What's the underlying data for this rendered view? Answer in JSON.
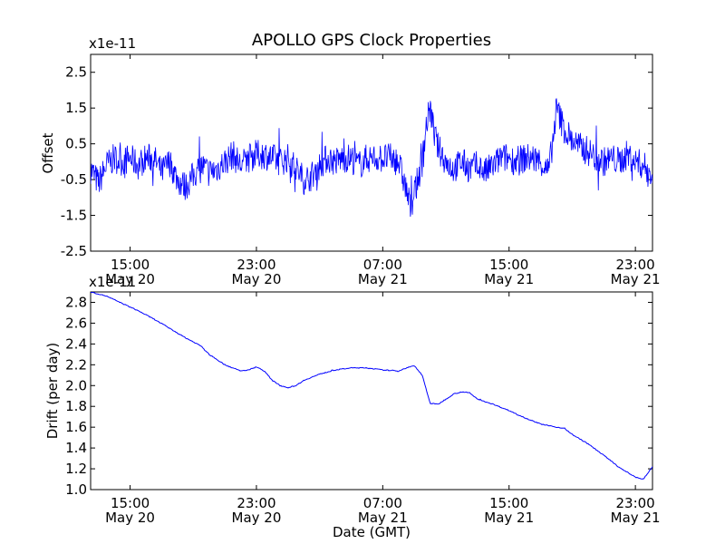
{
  "figure": {
    "title": "APOLLO GPS Clock Properties",
    "line_color": "#0000ff"
  },
  "chart_data": [
    {
      "type": "line",
      "name": "offset-chart",
      "ylabel": "Offset",
      "xlabel": "",
      "multiplier": "x1e-11",
      "x_range": [
        "2013-05-20T12:30",
        "2013-05-22T00:05"
      ],
      "ylim": [
        -2.5,
        3.0
      ],
      "yticks": [
        -2.5,
        -1.5,
        -0.5,
        0.5,
        1.5,
        2.5
      ],
      "ytick_labels": [
        "-2.5",
        "-1.5",
        "-0.5",
        "0.5",
        "1.5",
        "2.5"
      ],
      "xticks": [
        "2013-05-20T15:00",
        "2013-05-20T23:00",
        "2013-05-21T07:00",
        "2013-05-21T15:00",
        "2013-05-21T23:00"
      ],
      "xtick_labels": [
        [
          "15:00",
          "May 20"
        ],
        [
          "23:00",
          "May 20"
        ],
        [
          "07:00",
          "May 21"
        ],
        [
          "15:00",
          "May 21"
        ],
        [
          "23:00",
          "May 21"
        ]
      ],
      "series": [
        {
          "noise": 0.42,
          "points": [
            [
              "2013-05-20T12:30",
              -0.2
            ],
            [
              "2013-05-20T13:00",
              -0.6
            ],
            [
              "2013-05-20T13:30",
              -0.1
            ],
            [
              "2013-05-20T14:00",
              0.1
            ],
            [
              "2013-05-20T14:30",
              0.0
            ],
            [
              "2013-05-20T15:00",
              0.1
            ],
            [
              "2013-05-20T15:30",
              -0.1
            ],
            [
              "2013-05-20T16:00",
              0.1
            ],
            [
              "2013-05-20T16:30",
              0.1
            ],
            [
              "2013-05-20T17:00",
              -0.3
            ],
            [
              "2013-05-20T17:30",
              0.0
            ],
            [
              "2013-05-20T18:00",
              -0.5
            ],
            [
              "2013-05-20T18:30",
              -0.7
            ],
            [
              "2013-05-20T19:00",
              -0.4
            ],
            [
              "2013-05-20T19:30",
              -0.1
            ],
            [
              "2013-05-20T20:00",
              -0.3
            ],
            [
              "2013-05-20T20:30",
              -0.2
            ],
            [
              "2013-05-20T21:00",
              0.0
            ],
            [
              "2013-05-20T21:30",
              0.2
            ],
            [
              "2013-05-20T22:00",
              -0.1
            ],
            [
              "2013-05-20T22:30",
              0.1
            ],
            [
              "2013-05-20T23:00",
              0.2
            ],
            [
              "2013-05-20T23:30",
              0.2
            ],
            [
              "2013-05-21T00:00",
              0.1
            ],
            [
              "2013-05-21T00:30",
              0.0
            ],
            [
              "2013-05-21T01:00",
              0.1
            ],
            [
              "2013-05-21T01:30",
              -0.2
            ],
            [
              "2013-05-21T02:00",
              -0.5
            ],
            [
              "2013-05-21T02:30",
              -0.4
            ],
            [
              "2013-05-21T03:00",
              -0.1
            ],
            [
              "2013-05-21T03:30",
              0.1
            ],
            [
              "2013-05-21T04:00",
              0.0
            ],
            [
              "2013-05-21T04:30",
              0.1
            ],
            [
              "2013-05-21T05:00",
              0.1
            ],
            [
              "2013-05-21T05:30",
              -0.1
            ],
            [
              "2013-05-21T06:00",
              0.1
            ],
            [
              "2013-05-21T06:30",
              0.1
            ],
            [
              "2013-05-21T07:00",
              0.1
            ],
            [
              "2013-05-21T07:30",
              0.1
            ],
            [
              "2013-05-21T08:00",
              0.0
            ],
            [
              "2013-05-21T08:30",
              -0.8
            ],
            [
              "2013-05-21T08:45",
              -1.3
            ],
            [
              "2013-05-21T09:00",
              -0.9
            ],
            [
              "2013-05-21T09:30",
              0.0
            ],
            [
              "2013-05-21T09:45",
              1.0
            ],
            [
              "2013-05-21T10:00",
              1.5
            ],
            [
              "2013-05-21T10:15",
              0.8
            ],
            [
              "2013-05-21T10:30",
              0.4
            ],
            [
              "2013-05-21T11:00",
              0.0
            ],
            [
              "2013-05-21T11:30",
              -0.2
            ],
            [
              "2013-05-21T12:00",
              0.0
            ],
            [
              "2013-05-21T12:30",
              -0.2
            ],
            [
              "2013-05-21T13:00",
              -0.1
            ],
            [
              "2013-05-21T13:30",
              -0.3
            ],
            [
              "2013-05-21T14:00",
              -0.1
            ],
            [
              "2013-05-21T14:30",
              0.1
            ],
            [
              "2013-05-21T15:00",
              0.1
            ],
            [
              "2013-05-21T15:30",
              0.0
            ],
            [
              "2013-05-21T16:00",
              0.1
            ],
            [
              "2013-05-21T16:30",
              0.1
            ],
            [
              "2013-05-21T17:00",
              0.0
            ],
            [
              "2013-05-21T17:30",
              -0.3
            ],
            [
              "2013-05-21T17:45",
              0.5
            ],
            [
              "2013-05-21T18:00",
              1.5
            ],
            [
              "2013-05-21T18:15",
              1.2
            ],
            [
              "2013-05-21T18:30",
              0.9
            ],
            [
              "2013-05-21T19:00",
              0.6
            ],
            [
              "2013-05-21T19:30",
              0.4
            ],
            [
              "2013-05-21T20:00",
              0.3
            ],
            [
              "2013-05-21T20:30",
              0.1
            ],
            [
              "2013-05-21T21:00",
              0.0
            ],
            [
              "2013-05-21T21:30",
              0.1
            ],
            [
              "2013-05-21T22:00",
              0.0
            ],
            [
              "2013-05-21T22:30",
              0.2
            ],
            [
              "2013-05-21T23:00",
              0.0
            ],
            [
              "2013-05-21T23:30",
              -0.1
            ],
            [
              "2013-05-22T00:05",
              -0.4
            ]
          ]
        }
      ]
    },
    {
      "type": "line",
      "name": "drift-chart",
      "ylabel": "Drift (per day)",
      "xlabel": "Date (GMT)",
      "multiplier": "x1e-11",
      "x_range": [
        "2013-05-20T12:30",
        "2013-05-22T00:05"
      ],
      "ylim": [
        1.0,
        2.9
      ],
      "yticks": [
        1.0,
        1.2,
        1.4,
        1.6,
        1.8,
        2.0,
        2.2,
        2.4,
        2.6,
        2.8
      ],
      "ytick_labels": [
        "1.0",
        "1.2",
        "1.4",
        "1.6",
        "1.8",
        "2.0",
        "2.2",
        "2.4",
        "2.6",
        "2.8"
      ],
      "xticks": [
        "2013-05-20T15:00",
        "2013-05-20T23:00",
        "2013-05-21T07:00",
        "2013-05-21T15:00",
        "2013-05-21T23:00"
      ],
      "xtick_labels": [
        [
          "15:00",
          "May 20"
        ],
        [
          "23:00",
          "May 20"
        ],
        [
          "07:00",
          "May 21"
        ],
        [
          "15:00",
          "May 21"
        ],
        [
          "23:00",
          "May 21"
        ]
      ],
      "series": [
        {
          "noise": 0.004,
          "points": [
            [
              "2013-05-20T12:30",
              2.9
            ],
            [
              "2013-05-20T13:30",
              2.86
            ],
            [
              "2013-05-20T14:30",
              2.79
            ],
            [
              "2013-05-20T15:30",
              2.72
            ],
            [
              "2013-05-20T16:30",
              2.64
            ],
            [
              "2013-05-20T17:30",
              2.55
            ],
            [
              "2013-05-20T18:30",
              2.46
            ],
            [
              "2013-05-20T19:30",
              2.38
            ],
            [
              "2013-05-20T20:00",
              2.3
            ],
            [
              "2013-05-20T20:30",
              2.25
            ],
            [
              "2013-05-20T21:00",
              2.2
            ],
            [
              "2013-05-20T22:00",
              2.14
            ],
            [
              "2013-05-20T22:30",
              2.15
            ],
            [
              "2013-05-20T23:00",
              2.18
            ],
            [
              "2013-05-20T23:30",
              2.14
            ],
            [
              "2013-05-21T00:00",
              2.05
            ],
            [
              "2013-05-21T00:30",
              2.0
            ],
            [
              "2013-05-21T01:00",
              1.98
            ],
            [
              "2013-05-21T01:30",
              2.0
            ],
            [
              "2013-05-21T02:00",
              2.05
            ],
            [
              "2013-05-21T03:00",
              2.11
            ],
            [
              "2013-05-21T04:00",
              2.15
            ],
            [
              "2013-05-21T05:00",
              2.17
            ],
            [
              "2013-05-21T06:00",
              2.17
            ],
            [
              "2013-05-21T07:00",
              2.15
            ],
            [
              "2013-05-21T08:00",
              2.14
            ],
            [
              "2013-05-21T08:30",
              2.17
            ],
            [
              "2013-05-21T09:00",
              2.19
            ],
            [
              "2013-05-21T09:30",
              2.1
            ],
            [
              "2013-05-21T10:00",
              1.83
            ],
            [
              "2013-05-21T10:30",
              1.82
            ],
            [
              "2013-05-21T11:00",
              1.87
            ],
            [
              "2013-05-21T11:30",
              1.92
            ],
            [
              "2013-05-21T12:00",
              1.94
            ],
            [
              "2013-05-21T12:30",
              1.93
            ],
            [
              "2013-05-21T13:00",
              1.87
            ],
            [
              "2013-05-21T14:00",
              1.82
            ],
            [
              "2013-05-21T15:00",
              1.76
            ],
            [
              "2013-05-21T16:00",
              1.69
            ],
            [
              "2013-05-21T17:00",
              1.63
            ],
            [
              "2013-05-21T18:00",
              1.6
            ],
            [
              "2013-05-21T18:30",
              1.59
            ],
            [
              "2013-05-21T19:00",
              1.53
            ],
            [
              "2013-05-21T20:00",
              1.44
            ],
            [
              "2013-05-21T21:00",
              1.33
            ],
            [
              "2013-05-21T22:00",
              1.21
            ],
            [
              "2013-05-21T23:00",
              1.12
            ],
            [
              "2013-05-21T23:30",
              1.1
            ],
            [
              "2013-05-22T00:05",
              1.22
            ]
          ]
        }
      ]
    }
  ]
}
